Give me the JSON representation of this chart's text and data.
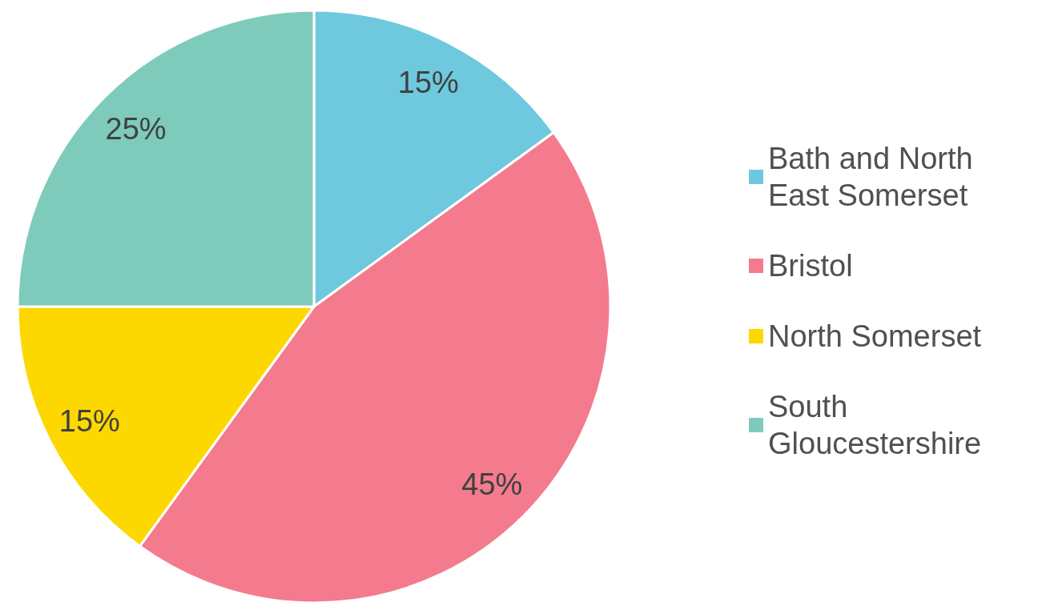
{
  "chart_data": {
    "type": "pie",
    "categories": [
      "Bath and North East Somerset",
      "Bristol",
      "North Somerset",
      "South Gloucestershire"
    ],
    "values": [
      15,
      45,
      15,
      25
    ],
    "colors": [
      "#6ec8de",
      "#f37b8d",
      "#fdd800",
      "#7ecbbb"
    ],
    "value_labels": [
      "15%",
      "45%",
      "15%",
      "25%"
    ],
    "legend": "right"
  }
}
